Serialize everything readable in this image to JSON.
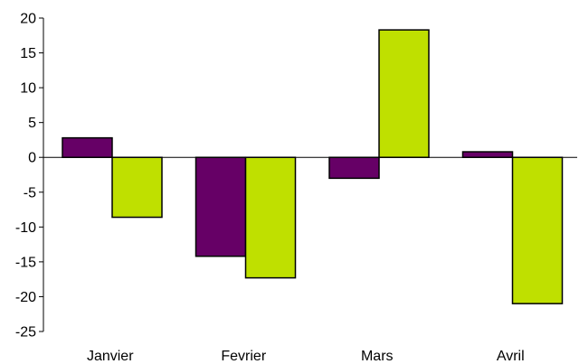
{
  "chart_data": {
    "type": "bar",
    "categories": [
      "Janvier",
      "Fevrier",
      "Mars",
      "Avril"
    ],
    "series": [
      {
        "values": [
          2.8,
          -14.2,
          -3.0,
          0.8
        ],
        "color": "#660066"
      },
      {
        "values": [
          -8.6,
          -17.3,
          18.3,
          -21.0
        ],
        "color": "#bfe000"
      }
    ],
    "ylim": [
      -25,
      20
    ],
    "yticks": [
      20,
      15,
      10,
      5,
      0,
      -5,
      -10,
      -15,
      -20,
      -25
    ],
    "grid": false,
    "legend": "none"
  }
}
